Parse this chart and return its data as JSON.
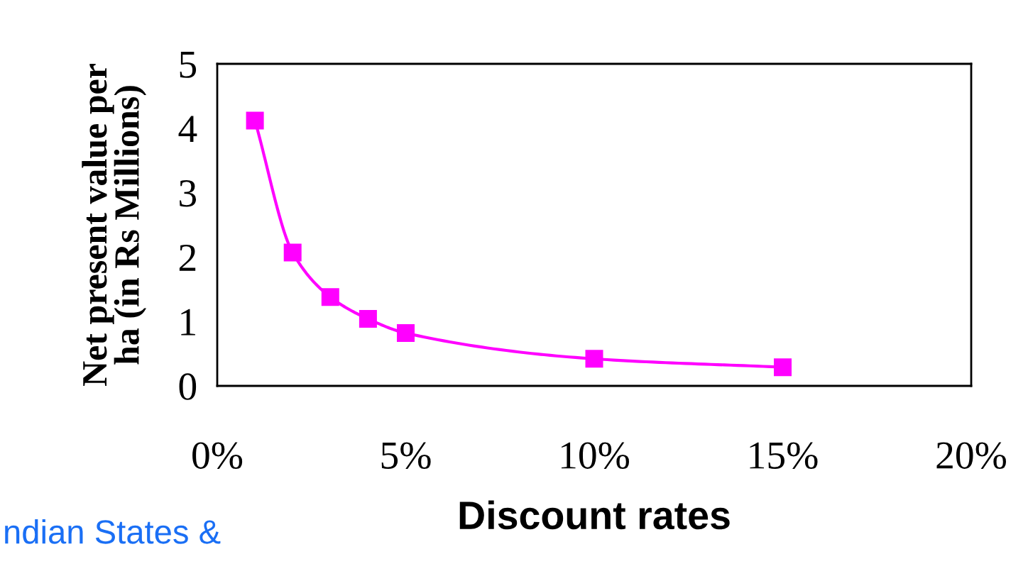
{
  "chart_data": {
    "type": "line",
    "x": [
      1,
      2,
      3,
      4,
      5,
      10,
      15
    ],
    "series": [
      {
        "color": "#ff00ff",
        "values": [
          4.12,
          2.07,
          1.38,
          1.04,
          0.82,
          0.42,
          0.29
        ]
      }
    ],
    "xlabel": "Discount rates",
    "ylabel": "Net present value per\nha (in Rs Millions)",
    "xlim": [
      0,
      20
    ],
    "xticks": [
      {
        "value": 0,
        "label": "0%"
      },
      {
        "value": 5,
        "label": "5%"
      },
      {
        "value": 10,
        "label": "10%"
      },
      {
        "value": 15,
        "label": "15%"
      },
      {
        "value": 20,
        "label": "20%"
      }
    ],
    "ylim": [
      0,
      5
    ],
    "yticks": [
      0,
      1,
      2,
      3,
      4,
      5
    ],
    "marker": "square",
    "line_style": "solid",
    "grid": false,
    "annotations": [
      "ndian States &"
    ]
  }
}
